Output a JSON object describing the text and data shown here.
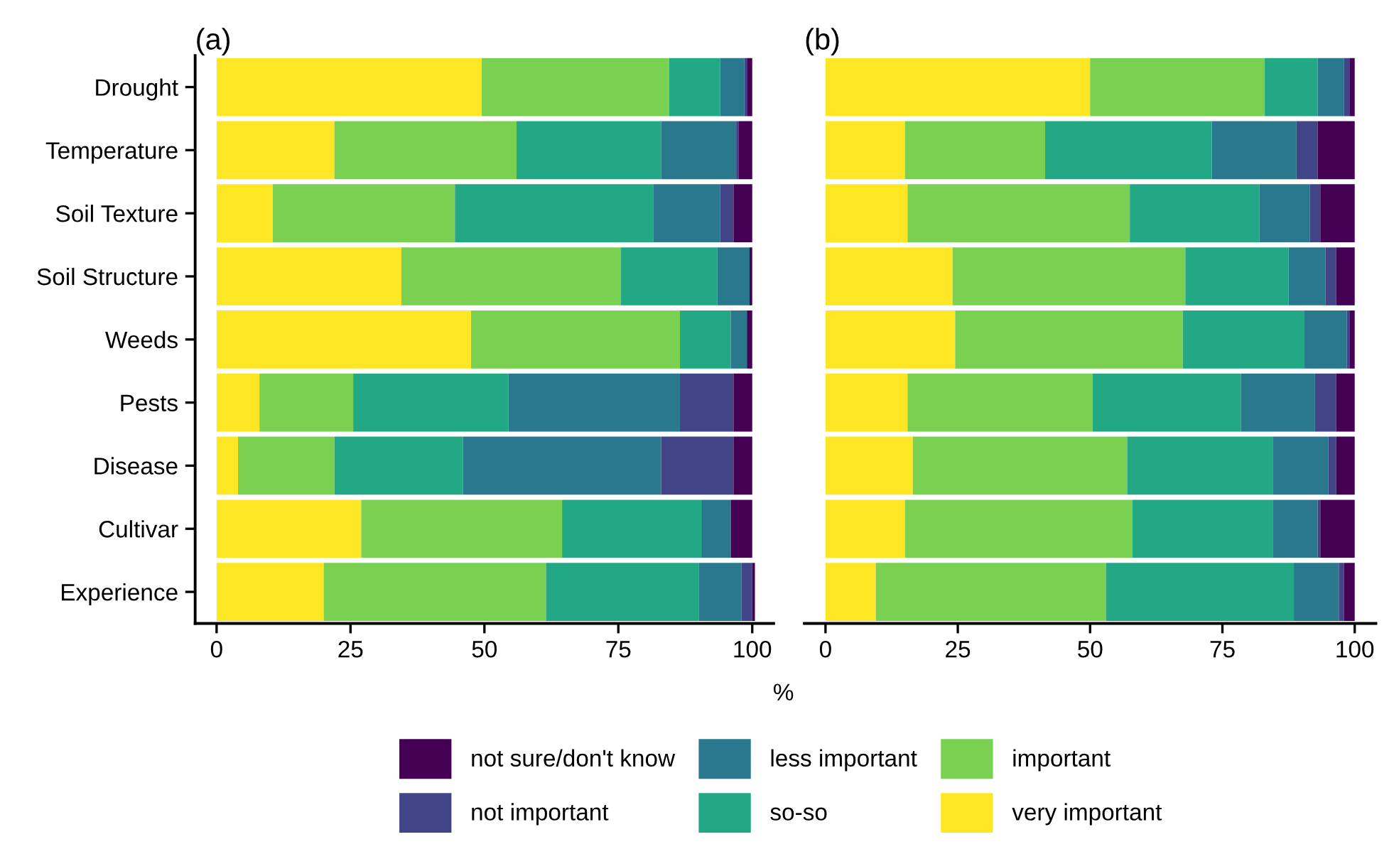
{
  "chart_data": [
    {
      "type": "bar",
      "title": "(a)",
      "xlabel": "%",
      "orientation": "horizontal",
      "stacked": true,
      "legend": "bottom",
      "grid": false,
      "categories": [
        "Drought",
        "Temperature",
        "Soil Texture",
        "Soil Structure",
        "Weeds",
        "Pests",
        "Disease",
        "Cultivar",
        "Experience"
      ],
      "xlim": [
        -4,
        104
      ],
      "xticks": [
        0,
        25,
        50,
        75,
        100
      ],
      "series": [
        {
          "name": "very important",
          "color": "#fde725",
          "values": [
            49.5,
            22,
            10.5,
            34.5,
            47.5,
            8,
            4,
            27,
            20
          ]
        },
        {
          "name": "important",
          "color": "#7ad151",
          "values": [
            35,
            34,
            34,
            41,
            39,
            17.5,
            18,
            37.5,
            41.5
          ]
        },
        {
          "name": "so-so",
          "color": "#22a884",
          "values": [
            9.5,
            27,
            37,
            18,
            9.5,
            29,
            24,
            26,
            28.5
          ]
        },
        {
          "name": "less important",
          "color": "#2a788e",
          "values": [
            4.5,
            14,
            12.5,
            6,
            3,
            32,
            37,
            5.5,
            8
          ]
        },
        {
          "name": "not important",
          "color": "#414487",
          "values": [
            0.5,
            0.5,
            2.5,
            0,
            0,
            10,
            13.5,
            0,
            2
          ]
        },
        {
          "name": "not sure/don't know",
          "color": "#440154",
          "values": [
            1,
            2.5,
            3.5,
            0.5,
            1,
            3.5,
            3.5,
            4,
            0.5
          ]
        }
      ]
    },
    {
      "type": "bar",
      "title": "(b)",
      "orientation": "horizontal",
      "stacked": true,
      "grid": false,
      "categories": [
        null,
        null,
        null,
        null,
        null,
        null,
        null,
        null,
        null
      ],
      "xlim": [
        -4,
        104
      ],
      "xticks": [
        0,
        25,
        50,
        75,
        100
      ],
      "series": [
        {
          "color": "#fde725",
          "values": [
            50,
            15,
            15.5,
            24,
            24.5,
            15.5,
            16.5,
            15,
            9.5
          ]
        },
        {
          "color": "#7ad151",
          "values": [
            33,
            26.5,
            42,
            44,
            43,
            35,
            40.5,
            43,
            43.5
          ]
        },
        {
          "color": "#22a884",
          "values": [
            10,
            31.5,
            24.5,
            19.5,
            23,
            28,
            27.5,
            26.5,
            35.5
          ]
        },
        {
          "color": "#2a788e",
          "values": [
            5,
            16,
            9.5,
            7,
            8,
            14,
            10.5,
            8.5,
            8.5
          ]
        },
        {
          "color": "#414487",
          "values": [
            1,
            4,
            2,
            2,
            0.5,
            4,
            1.5,
            0.5,
            1
          ]
        },
        {
          "color": "#440154",
          "values": [
            1,
            7,
            6.5,
            3.5,
            1,
            3.5,
            3.5,
            6.5,
            2
          ]
        }
      ]
    }
  ]
}
